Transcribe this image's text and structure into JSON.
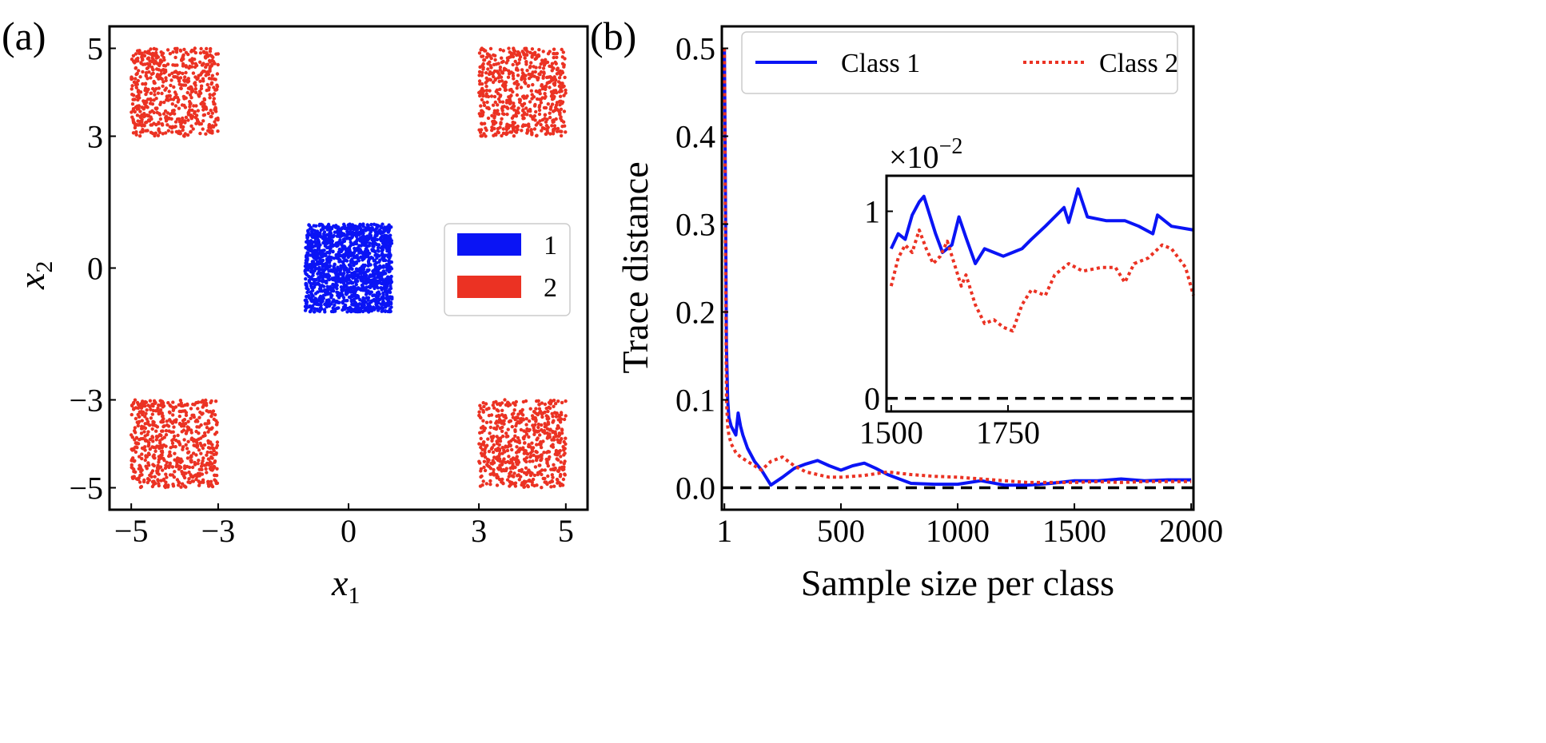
{
  "chart_data": [
    {
      "panel_label": "(a)",
      "type": "scatter",
      "xlabel": "x",
      "xlabel_sub": "1",
      "ylabel": "x",
      "ylabel_sub": "2",
      "xlim": [
        -5.5,
        5.5
      ],
      "ylim": [
        -5.5,
        5.5
      ],
      "xticks": [
        "−5",
        "−3",
        "0",
        "3",
        "5"
      ],
      "xtick_values": [
        -5,
        -3,
        0,
        3,
        5
      ],
      "yticks": [
        "5",
        "3",
        "0",
        "−3",
        "−5"
      ],
      "ytick_values": [
        5,
        3,
        0,
        -3,
        -5
      ],
      "legend": {
        "placement": "center-right",
        "entries": [
          {
            "label": "1",
            "color": "#0a14f5"
          },
          {
            "label": "2",
            "color": "#eb3223"
          }
        ]
      },
      "series": [
        {
          "name": "1",
          "color": "#0a14f5",
          "distribution": "uniform",
          "regions": [
            {
              "x": [
                -1,
                1
              ],
              "y": [
                -1,
                1
              ]
            }
          ],
          "points_per_region": 1500
        },
        {
          "name": "2",
          "color": "#eb3223",
          "distribution": "uniform",
          "regions": [
            {
              "x": [
                -5,
                -3
              ],
              "y": [
                3,
                5
              ]
            },
            {
              "x": [
                3,
                5
              ],
              "y": [
                3,
                5
              ]
            },
            {
              "x": [
                -5,
                -3
              ],
              "y": [
                -5,
                -3
              ]
            },
            {
              "x": [
                3,
                5
              ],
              "y": [
                -5,
                -3
              ]
            }
          ],
          "points_per_region": 600
        }
      ]
    },
    {
      "panel_label": "(b)",
      "type": "line",
      "xlabel": "Sample size per class",
      "ylabel": "Trace distance",
      "xlim": [
        -10,
        2010
      ],
      "ylim": [
        -0.025,
        0.525
      ],
      "xticks": [
        "1",
        "500",
        "1000",
        "1500",
        "2000"
      ],
      "xtick_values": [
        1,
        500,
        1000,
        1500,
        2000
      ],
      "yticks": [
        "0.0",
        "0.1",
        "0.2",
        "0.3",
        "0.4",
        "0.5"
      ],
      "ytick_values": [
        0,
        0.1,
        0.2,
        0.3,
        0.4,
        0.5
      ],
      "reference_line": {
        "y": 0,
        "style": "dashed",
        "color": "#000000"
      },
      "legend": {
        "placement": "top-right"
      },
      "series": [
        {
          "name": "Class 1",
          "color": "#0a14f5",
          "style": "solid",
          "x": [
            1,
            5,
            10,
            15,
            20,
            30,
            40,
            50,
            60,
            70,
            80,
            100,
            130,
            160,
            200,
            250,
            300,
            350,
            400,
            450,
            500,
            550,
            600,
            650,
            700,
            750,
            800,
            900,
            1000,
            1100,
            1200,
            1300,
            1400,
            1500,
            1600,
            1700,
            1800,
            1900,
            2000
          ],
          "y": [
            0.5,
            0.35,
            0.16,
            0.1,
            0.08,
            0.07,
            0.065,
            0.06,
            0.085,
            0.07,
            0.06,
            0.045,
            0.03,
            0.02,
            0.003,
            0.012,
            0.022,
            0.027,
            0.031,
            0.025,
            0.02,
            0.025,
            0.028,
            0.022,
            0.015,
            0.01,
            0.005,
            0.004,
            0.004,
            0.008,
            0.003,
            0.003,
            0.005,
            0.008,
            0.008,
            0.01,
            0.008,
            0.009,
            0.009
          ]
        },
        {
          "name": "Class 2",
          "color": "#eb3223",
          "style": "dotted",
          "x": [
            1,
            5,
            10,
            15,
            20,
            30,
            40,
            50,
            70,
            100,
            130,
            160,
            200,
            250,
            300,
            350,
            400,
            450,
            500,
            600,
            700,
            800,
            900,
            1000,
            1100,
            1200,
            1300,
            1400,
            1500,
            1600,
            1700,
            1800,
            1900,
            2000
          ],
          "y": [
            0.5,
            0.3,
            0.1,
            0.07,
            0.06,
            0.05,
            0.045,
            0.04,
            0.035,
            0.03,
            0.025,
            0.02,
            0.03,
            0.035,
            0.025,
            0.018,
            0.015,
            0.012,
            0.012,
            0.014,
            0.018,
            0.015,
            0.013,
            0.012,
            0.01,
            0.008,
            0.006,
            0.006,
            0.006,
            0.007,
            0.006,
            0.007,
            0.007,
            0.007
          ]
        }
      ],
      "inset": {
        "type": "line",
        "scale_label": "×10",
        "scale_exponent": "−2",
        "xlim": [
          1490,
          2147
        ],
        "ylim": [
          -0.07,
          1.19
        ],
        "xticks": [
          "1500",
          "1750"
        ],
        "xtick_values": [
          1500,
          1750
        ],
        "yticks": [
          "0",
          "1"
        ],
        "ytick_values": [
          0,
          1
        ],
        "reference_line": {
          "y": 0,
          "style": "dashed",
          "color": "#000000"
        },
        "series": [
          {
            "name": "Class 1",
            "color": "#0a14f5",
            "style": "solid",
            "x": [
              1500,
              1515,
              1530,
              1545,
              1560,
              1570,
              1580,
              1595,
              1610,
              1630,
              1645,
              1660,
              1680,
              1700,
              1720,
              1740,
              1760,
              1780,
              1800,
              1830,
              1850,
              1870,
              1880,
              1900,
              1920,
              1960,
              2000,
              2030,
              2060,
              2070,
              2100,
              2147
            ],
            "y": [
              0.8,
              0.88,
              0.85,
              0.98,
              1.05,
              1.08,
              1.0,
              0.88,
              0.78,
              0.82,
              0.97,
              0.86,
              0.72,
              0.8,
              0.78,
              0.76,
              0.78,
              0.8,
              0.85,
              0.92,
              0.97,
              1.02,
              0.94,
              1.12,
              0.97,
              0.95,
              0.95,
              0.92,
              0.88,
              0.98,
              0.92,
              0.9
            ]
          },
          {
            "name": "Class 2",
            "color": "#eb3223",
            "style": "dotted",
            "x": [
              1500,
              1515,
              1530,
              1545,
              1560,
              1575,
              1590,
              1605,
              1620,
              1640,
              1650,
              1660,
              1680,
              1700,
              1720,
              1740,
              1760,
              1780,
              1800,
              1830,
              1850,
              1880,
              1910,
              1950,
              1980,
              2000,
              2020,
              2050,
              2080,
              2100,
              2130,
              2147
            ],
            "y": [
              0.6,
              0.75,
              0.82,
              0.78,
              0.9,
              0.8,
              0.72,
              0.76,
              0.84,
              0.68,
              0.6,
              0.66,
              0.5,
              0.4,
              0.42,
              0.38,
              0.36,
              0.5,
              0.58,
              0.55,
              0.66,
              0.72,
              0.68,
              0.7,
              0.7,
              0.62,
              0.72,
              0.75,
              0.82,
              0.8,
              0.7,
              0.55
            ]
          }
        ]
      }
    }
  ]
}
